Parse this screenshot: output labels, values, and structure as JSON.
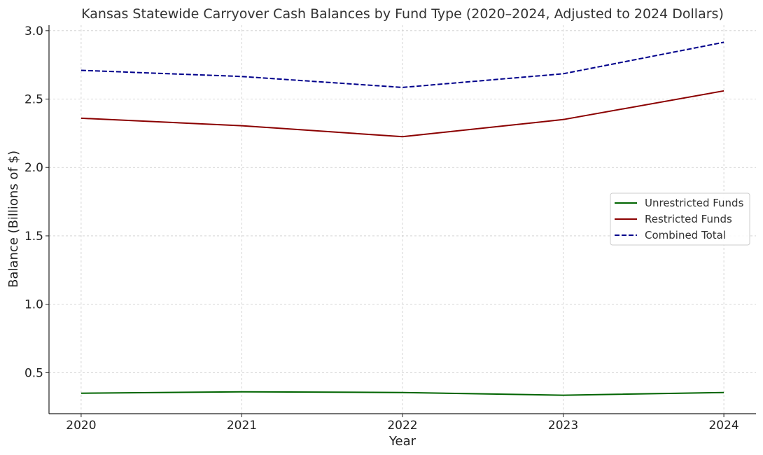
{
  "chart_data": {
    "type": "line",
    "title": "Kansas Statewide Carryover Cash Balances by Fund Type (2020–2024, Adjusted to 2024 Dollars)",
    "xlabel": "Year",
    "ylabel": "Balance (Billions of $)",
    "x": [
      2020,
      2021,
      2022,
      2023,
      2024
    ],
    "x_tick_labels": [
      "2020",
      "2021",
      "2022",
      "2023",
      "2024"
    ],
    "xlim": [
      2019.8,
      2024.2
    ],
    "ylim": [
      0.2,
      3.04
    ],
    "y_ticks": [
      0.5,
      1.0,
      1.5,
      2.0,
      2.5,
      3.0
    ],
    "y_tick_labels": [
      "0.5",
      "1.0",
      "1.5",
      "2.0",
      "2.5",
      "3.0"
    ],
    "grid": true,
    "legend_position": "center-right",
    "series": [
      {
        "name": "Unrestricted Funds",
        "values": [
          0.35,
          0.36,
          0.355,
          0.335,
          0.355
        ],
        "color": "#006400",
        "dash": "solid"
      },
      {
        "name": "Restricted Funds",
        "values": [
          2.36,
          2.305,
          2.225,
          2.35,
          2.56
        ],
        "color": "#8b0000",
        "dash": "solid"
      },
      {
        "name": "Combined Total",
        "values": [
          2.71,
          2.665,
          2.585,
          2.685,
          2.915
        ],
        "color": "#00008b",
        "dash": "dashed"
      }
    ]
  }
}
